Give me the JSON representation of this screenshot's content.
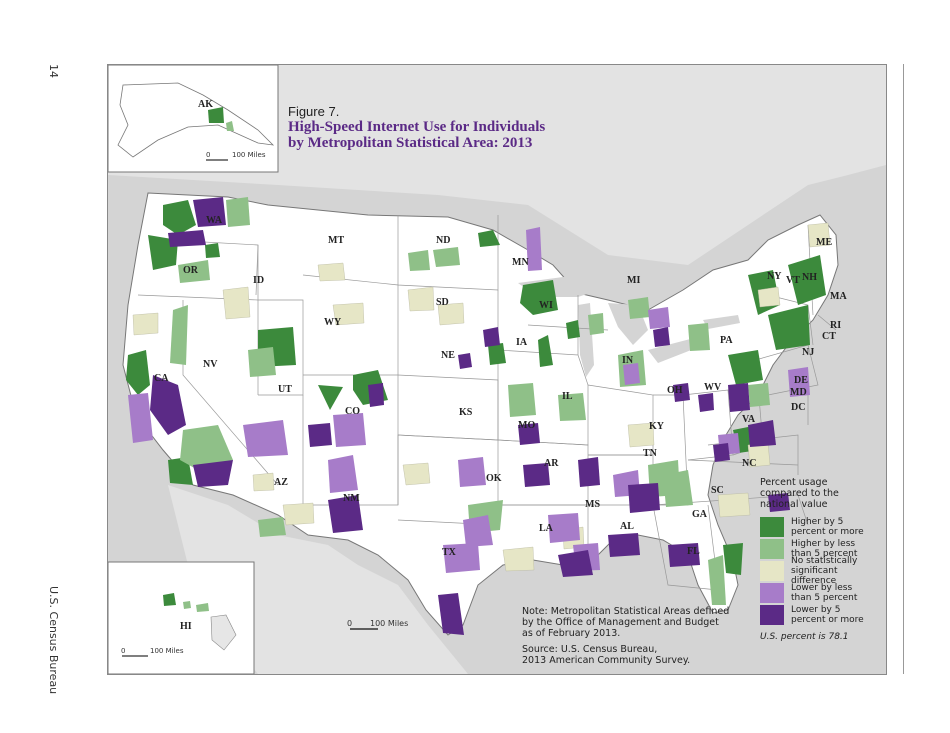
{
  "page": {
    "number": "14",
    "running_footer": "U.S. Census Bureau"
  },
  "figure": {
    "label": "Figure 7.",
    "title_line1": "High-Speed Internet Use for Individuals",
    "title_line2": "by Metropolitan Statistical Area: 2013"
  },
  "legend": {
    "title_line1": "Percent usage",
    "title_line2": "compared to the",
    "title_line3": "national value",
    "items": [
      {
        "line1": "Higher by 5",
        "line2": "percent or more",
        "color": "#3c8a3c"
      },
      {
        "line1": "Higher by less",
        "line2": "than 5 percent",
        "color": "#8fc088"
      },
      {
        "line1": "No statistically",
        "line2": "significant difference",
        "color": "#e6e6c6"
      },
      {
        "line1": "Lower by less",
        "line2": "than 5 percent",
        "color": "#a77cc9"
      },
      {
        "line1": "Lower by 5",
        "line2": "percent or more",
        "color": "#5b2a86"
      }
    ],
    "us_percent": "U.S. percent is 78.1"
  },
  "note": {
    "line1": "Note: Metropolitan Statistical Areas defined",
    "line2": "by the Office of Management and Budget",
    "line3": "as of February 2013."
  },
  "source": {
    "line1": "Source: U.S. Census Bureau,",
    "line2": "2013 American Community Survey."
  },
  "scales": {
    "main": "100 Miles",
    "alaska": "100 Miles",
    "hawaii": "100 Miles",
    "zero": "0"
  },
  "states": {
    "AK": "AK",
    "HI": "HI",
    "WA": "WA",
    "OR": "OR",
    "CA": "CA",
    "ID": "ID",
    "NV": "NV",
    "MT": "MT",
    "WY": "WY",
    "UT": "UT",
    "AZ": "AZ",
    "CO": "CO",
    "NM": "NM",
    "ND": "ND",
    "SD": "SD",
    "NE": "NE",
    "KS": "KS",
    "OK": "OK",
    "TX": "TX",
    "MN": "MN",
    "IA": "IA",
    "MO": "MO",
    "AR": "AR",
    "LA": "LA",
    "WI": "WI",
    "IL": "IL",
    "MI": "MI",
    "IN": "IN",
    "OH": "OH",
    "KY": "KY",
    "TN": "TN",
    "MS": "MS",
    "AL": "AL",
    "GA": "GA",
    "FL": "FL",
    "SC": "SC",
    "NC": "NC",
    "VA": "VA",
    "WV": "WV",
    "PA": "PA",
    "NY": "NY",
    "VT": "VT",
    "NH": "NH",
    "ME": "ME",
    "MA": "MA",
    "RI": "RI",
    "CT": "CT",
    "NJ": "NJ",
    "DE": "DE",
    "MD": "MD",
    "DC": "DC"
  }
}
